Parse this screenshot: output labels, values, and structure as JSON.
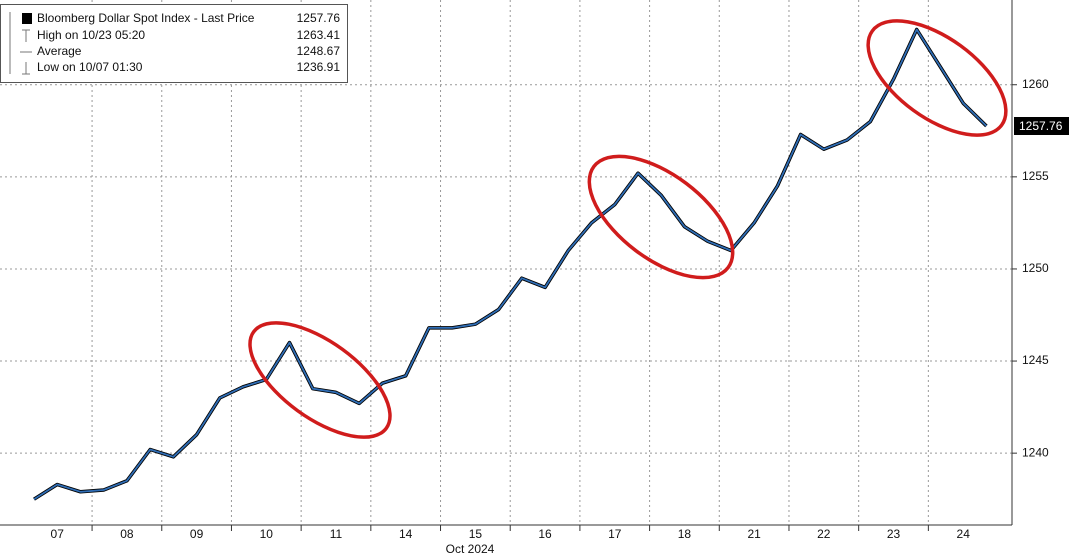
{
  "chart_data": {
    "type": "line",
    "categories": [
      null,
      "07",
      null,
      null,
      "08",
      null,
      null,
      "09",
      null,
      null,
      "10",
      null,
      null,
      "11",
      null,
      null,
      "14",
      null,
      null,
      "15",
      null,
      null,
      "16",
      null,
      null,
      "17",
      null,
      null,
      "18",
      null,
      null,
      "21",
      null,
      null,
      "22",
      null,
      null,
      "23",
      null,
      null,
      "24",
      null
    ],
    "series": [
      {
        "name": "Bloomberg Dollar Spot Index - Last Price",
        "color": "#2f6db5",
        "values": [
          1237.5,
          1238.3,
          1237.9,
          1238.0,
          1238.5,
          1240.2,
          1239.8,
          1241.0,
          1243.0,
          1243.6,
          1244.0,
          1246.0,
          1243.5,
          1243.3,
          1242.7,
          1243.8,
          1244.2,
          1246.8,
          1246.8,
          1247.0,
          1247.8,
          1249.5,
          1249.0,
          1251.0,
          1252.5,
          1253.5,
          1255.2,
          1254.0,
          1252.3,
          1251.5,
          1251.0,
          1252.5,
          1254.5,
          1257.3,
          1256.5,
          1257.0,
          1258.0,
          1260.3,
          1263.0,
          1261.0,
          1259.0,
          1257.76
        ]
      }
    ],
    "last_price": 1257.76,
    "stats": [
      {
        "label": "High on 10/23 05:20",
        "value": 1263.41
      },
      {
        "label": "Average",
        "value": 1248.67
      },
      {
        "label": "Low on 10/07 01:30",
        "value": 1236.91
      }
    ],
    "x_label": "Oct 2024",
    "ylim": [
      1236.1,
      1264.6
    ],
    "yticks": [
      1240,
      1245,
      1250,
      1255,
      1260
    ],
    "grid": true
  }
}
